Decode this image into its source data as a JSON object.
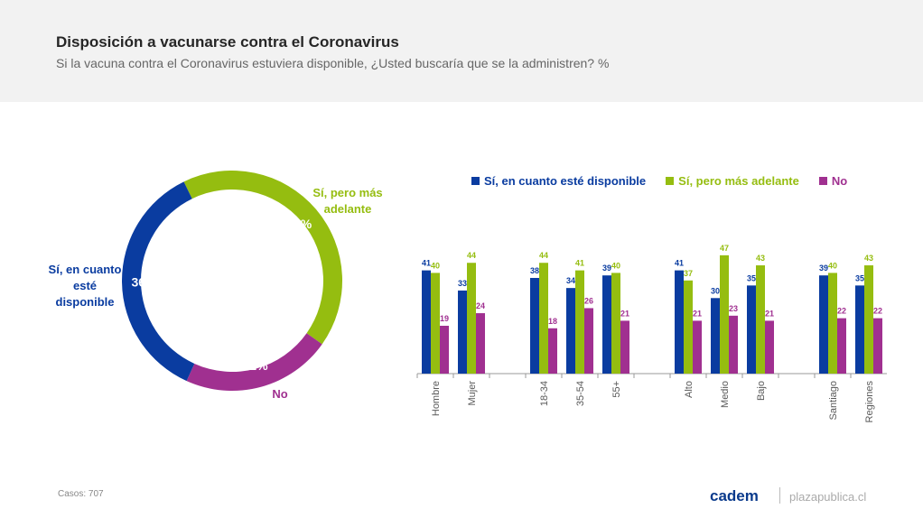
{
  "header": {
    "title": "Disposición a vacunarse contra el Coronavirus",
    "subtitle": "Si la vacuna contra el Coronavirus estuviera disponible, ¿Usted buscaría que se la administren? %"
  },
  "footer": {
    "casos": "Casos: 707",
    "brand": "cadem",
    "site": "plazapublica.cl"
  },
  "chart_data": [
    {
      "type": "pie",
      "donut": true,
      "slices": [
        {
          "name": "Sí, pero más adelante",
          "value": 42,
          "label": "42%",
          "color": "#95bd10"
        },
        {
          "name": "No",
          "value": 22,
          "label": "22%",
          "color": "#a03090"
        },
        {
          "name": "Sí, en cuanto esté disponible",
          "value": 36,
          "label": "36%",
          "color": "#0a3ca0"
        }
      ]
    },
    {
      "type": "bar",
      "legend": "top",
      "categories": [
        "Hombre",
        "Mujer",
        "",
        "18-34",
        "35-54",
        "55+",
        "",
        "Alto",
        "Medio",
        "Bajo",
        "",
        "Santiago",
        "Regiones"
      ],
      "series": [
        {
          "name": "Sí, en cuanto esté disponible",
          "color": "#0a3ca0",
          "values": [
            41,
            33,
            null,
            38,
            34,
            39,
            null,
            41,
            30,
            35,
            null,
            39,
            35
          ]
        },
        {
          "name": "Sí, pero más adelante",
          "color": "#95bd10",
          "values": [
            40,
            44,
            null,
            44,
            41,
            40,
            null,
            37,
            47,
            43,
            null,
            40,
            43
          ]
        },
        {
          "name": "No",
          "color": "#a03090",
          "values": [
            19,
            24,
            null,
            18,
            26,
            21,
            null,
            21,
            23,
            21,
            null,
            22,
            22
          ]
        }
      ]
    }
  ]
}
